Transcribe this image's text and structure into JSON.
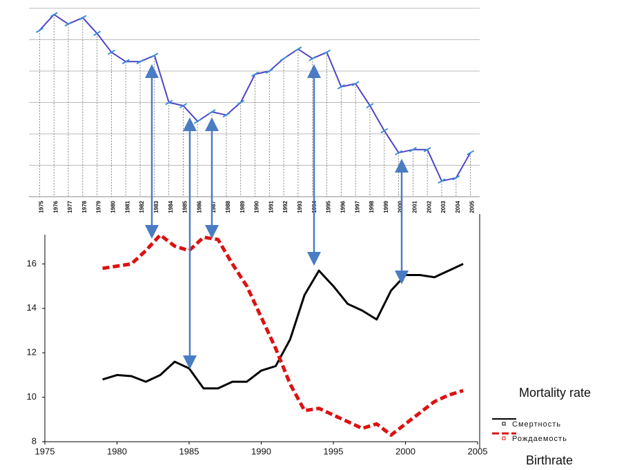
{
  "chart_data": [
    {
      "type": "line",
      "categories": [
        "1975",
        "1976",
        "1977",
        "1978",
        "1979",
        "1980",
        "1981",
        "1982",
        "1983",
        "1984",
        "1985",
        "1986",
        "1987",
        "1988",
        "1989",
        "1990",
        "1991",
        "1992",
        "1993",
        "1994",
        "1995",
        "1996",
        "1997",
        "1998",
        "1999",
        "2000",
        "2001",
        "2002",
        "2003",
        "2004",
        "2005"
      ],
      "values": [
        5.3,
        5.8,
        5.5,
        5.7,
        5.2,
        4.6,
        4.3,
        4.3,
        4.5,
        3.0,
        2.9,
        2.4,
        2.7,
        2.6,
        3.0,
        3.9,
        4.0,
        4.4,
        4.7,
        4.4,
        4.6,
        3.5,
        3.6,
        2.9,
        2.1,
        1.4,
        1.5,
        1.5,
        0.5,
        0.6,
        1.4
      ],
      "color": "#4f44c8",
      "ylim": [
        0,
        6
      ],
      "yticks": [
        1,
        2,
        3,
        4,
        5,
        6
      ],
      "show_ytick_labels": false,
      "grid": true
    },
    {
      "type": "line",
      "x": [
        1979,
        1980,
        1981,
        1982,
        1983,
        1984,
        1985,
        1986,
        1987,
        1988,
        1989,
        1990,
        1991,
        1992,
        1993,
        1994,
        1995,
        1996,
        1997,
        1998,
        1999,
        2000,
        2001,
        2002,
        2003,
        2004
      ],
      "series": [
        {
          "name": "Смертность",
          "color": "#000000",
          "dash": false,
          "values": [
            10.8,
            11.0,
            10.95,
            10.7,
            11.0,
            11.6,
            11.3,
            10.4,
            10.4,
            10.7,
            10.7,
            11.2,
            11.4,
            12.6,
            14.6,
            15.7,
            15.0,
            14.2,
            13.9,
            13.5,
            14.8,
            15.5,
            15.5,
            15.4,
            15.7,
            16.0
          ]
        },
        {
          "name": "Рождаемость",
          "color": "#dd1111",
          "dash": true,
          "values": [
            15.8,
            15.9,
            16.0,
            16.6,
            17.3,
            16.8,
            16.6,
            17.2,
            17.1,
            16.0,
            15.0,
            13.6,
            12.2,
            10.6,
            9.4,
            9.5,
            9.2,
            8.9,
            8.6,
            8.8,
            8.3,
            8.8,
            9.3,
            9.8,
            10.1,
            10.3
          ]
        }
      ],
      "xlim": [
        1975,
        2005
      ],
      "xticks": [
        1975,
        1980,
        1985,
        1990,
        1995,
        2000,
        2005
      ],
      "ylim": [
        8,
        18
      ],
      "yticks": [
        8,
        10,
        12,
        14,
        16
      ],
      "annotations": [
        "Mortality rate",
        "Birthrate"
      ]
    }
  ]
}
